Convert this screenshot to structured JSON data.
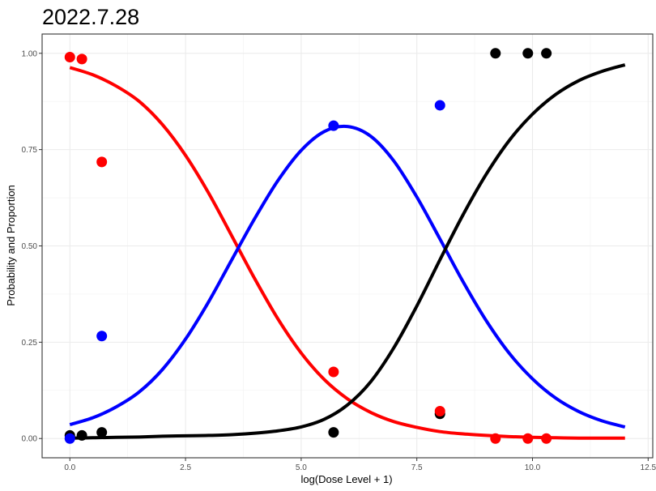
{
  "chart_data": {
    "type": "scatter",
    "title": "2022.7.28",
    "xlabel": "log(Dose Level + 1)",
    "ylabel": "Probability and Proportion",
    "xlim": [
      -0.6,
      12.6
    ],
    "ylim": [
      -0.05,
      1.05
    ],
    "x_ticks": [
      0,
      2.5,
      5,
      7.5,
      10,
      12.5
    ],
    "x_tick_labels": [
      "0.0",
      "2.5",
      "5.0",
      "7.5",
      "10.0",
      "12.5"
    ],
    "y_ticks": [
      0,
      0.25,
      0.5,
      0.75,
      1
    ],
    "y_tick_labels": [
      "0.00",
      "0.25",
      "0.50",
      "0.75",
      "1.00"
    ],
    "grid": true,
    "legend": "none",
    "series": [
      {
        "color": "#ff0000",
        "points": [
          {
            "x": 0.0,
            "y": 0.99
          },
          {
            "x": 0.26,
            "y": 0.985
          },
          {
            "x": 0.69,
            "y": 0.718
          },
          {
            "x": 5.7,
            "y": 0.173
          },
          {
            "x": 8.0,
            "y": 0.071
          },
          {
            "x": 9.2,
            "y": 0.0
          },
          {
            "x": 9.9,
            "y": 0.0
          },
          {
            "x": 10.3,
            "y": 0.0
          }
        ],
        "curve": {
          "kind": "decreasing-logistic",
          "x": [
            0,
            0.5,
            1,
            1.5,
            2,
            2.5,
            3,
            3.5,
            4,
            4.5,
            5,
            5.5,
            6,
            6.5,
            7,
            7.5,
            8,
            8.5,
            9,
            9.5,
            10,
            10.5,
            11,
            11.5,
            12
          ],
          "y": [
            0.963,
            0.944,
            0.915,
            0.875,
            0.815,
            0.735,
            0.637,
            0.526,
            0.414,
            0.31,
            0.222,
            0.153,
            0.103,
            0.068,
            0.044,
            0.029,
            0.018,
            0.012,
            0.008,
            0.005,
            0.003,
            0.002,
            0.001,
            0.001,
            0.001
          ]
        }
      },
      {
        "color": "#0000ff",
        "points": [
          {
            "x": 0.0,
            "y": 0.0
          },
          {
            "x": 0.69,
            "y": 0.266
          },
          {
            "x": 5.7,
            "y": 0.812
          },
          {
            "x": 8.0,
            "y": 0.865
          }
        ],
        "curve": {
          "kind": "middle-category",
          "x": [
            0,
            0.5,
            1,
            1.5,
            2,
            2.5,
            3,
            3.5,
            4,
            4.5,
            5,
            5.5,
            6,
            6.5,
            7,
            7.5,
            8,
            8.5,
            9,
            9.5,
            10,
            10.5,
            11,
            11.5,
            12
          ],
          "y": [
            0.036,
            0.054,
            0.082,
            0.121,
            0.179,
            0.258,
            0.355,
            0.464,
            0.572,
            0.67,
            0.748,
            0.797,
            0.81,
            0.785,
            0.721,
            0.627,
            0.518,
            0.407,
            0.306,
            0.221,
            0.155,
            0.105,
            0.07,
            0.046,
            0.03
          ]
        }
      },
      {
        "color": "#000000",
        "points": [
          {
            "x": 0.0,
            "y": 0.008
          },
          {
            "x": 0.26,
            "y": 0.008
          },
          {
            "x": 0.69,
            "y": 0.016
          },
          {
            "x": 5.7,
            "y": 0.016
          },
          {
            "x": 8.0,
            "y": 0.064
          },
          {
            "x": 9.2,
            "y": 1.0
          },
          {
            "x": 9.9,
            "y": 1.0
          },
          {
            "x": 10.3,
            "y": 1.0
          }
        ],
        "curve": {
          "kind": "increasing-logistic",
          "x": [
            0,
            0.5,
            1,
            1.5,
            2,
            2.5,
            3,
            3.5,
            4,
            4.5,
            5,
            5.5,
            6,
            6.5,
            7,
            7.5,
            8,
            8.5,
            9,
            9.5,
            10,
            10.5,
            11,
            11.5,
            12
          ],
          "y": [
            0.001,
            0.002,
            0.003,
            0.004,
            0.006,
            0.007,
            0.008,
            0.01,
            0.014,
            0.02,
            0.03,
            0.05,
            0.087,
            0.147,
            0.235,
            0.344,
            0.464,
            0.581,
            0.686,
            0.774,
            0.842,
            0.893,
            0.929,
            0.953,
            0.97
          ]
        }
      }
    ]
  }
}
